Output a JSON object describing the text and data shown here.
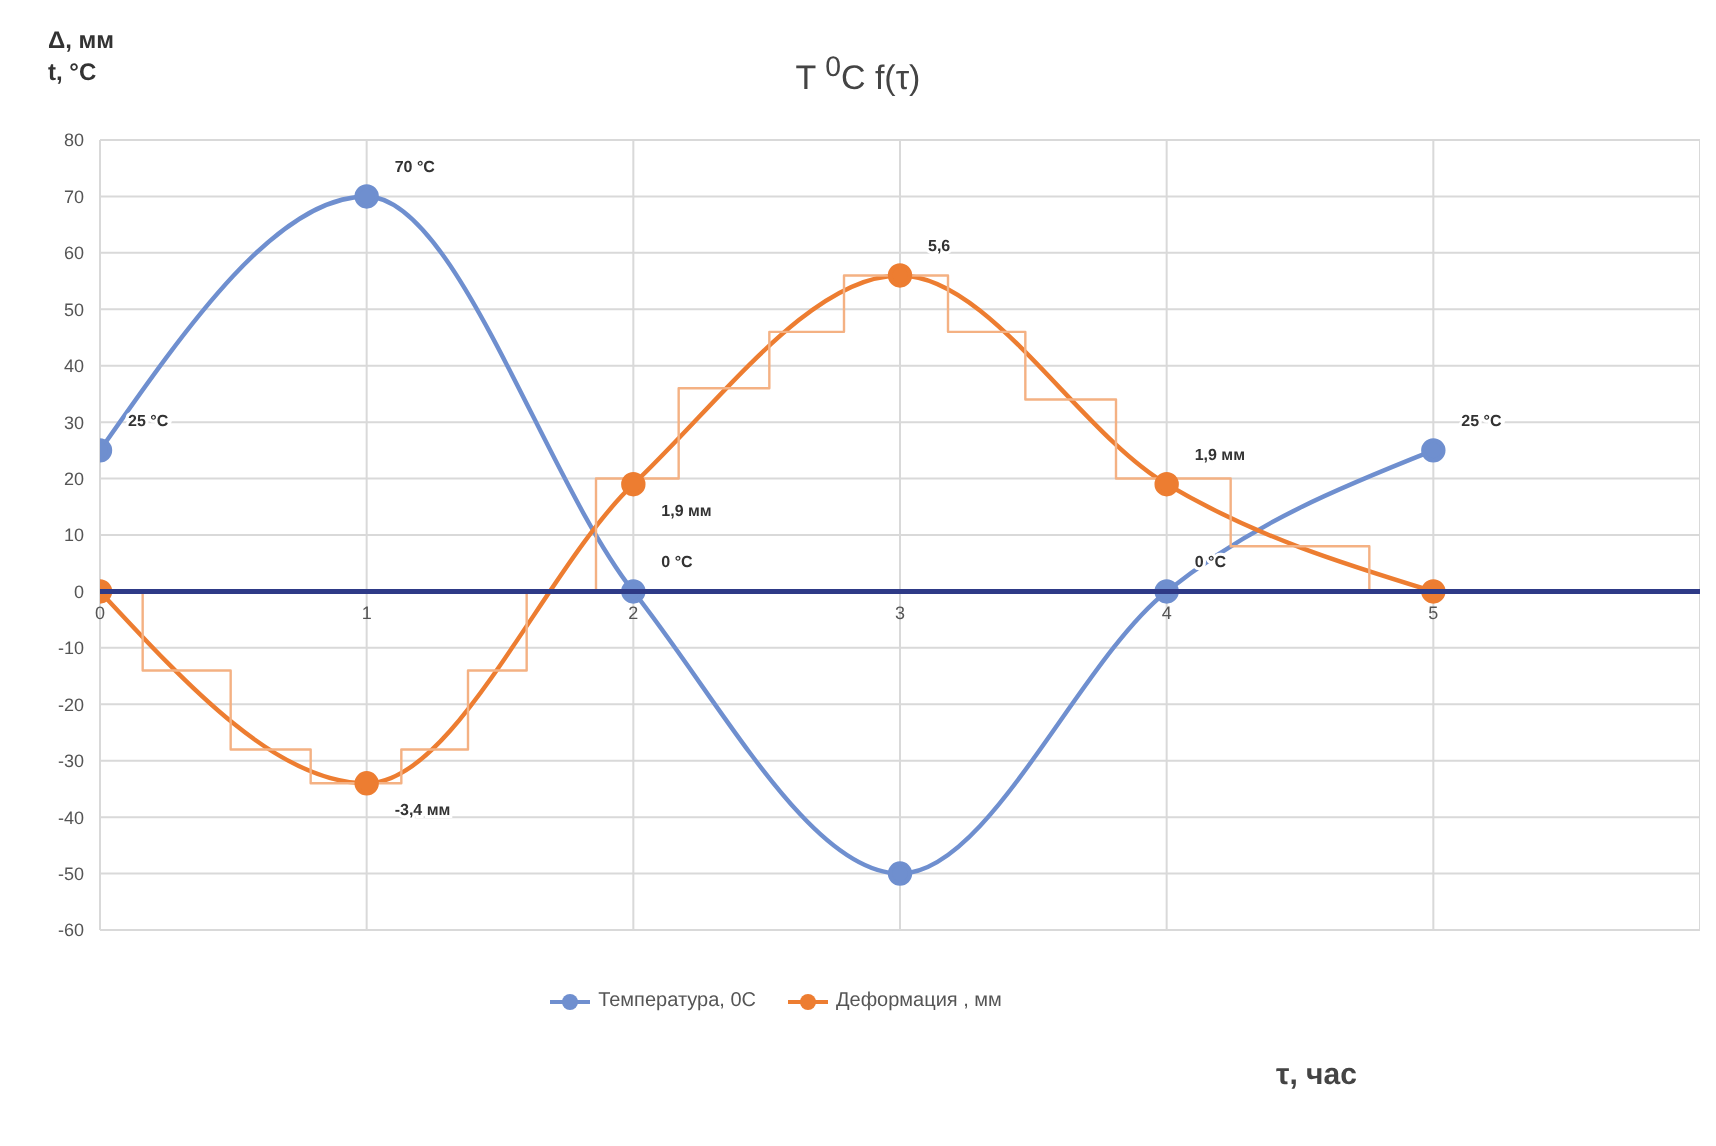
{
  "chart_data": {
    "type": "line",
    "title": "T $^{0}$C f(τ)",
    "ylabel": "Δ, мм\nt, °C",
    "xlabel": "τ, час",
    "x": [
      0,
      1,
      2,
      3,
      4,
      5
    ],
    "xlim": [
      0,
      6
    ],
    "xticks": [
      0,
      1,
      2,
      3,
      4,
      5
    ],
    "ylim": [
      -60,
      80
    ],
    "yticks": [
      -60,
      -50,
      -40,
      -30,
      -20,
      -10,
      0,
      10,
      20,
      30,
      40,
      50,
      60,
      70,
      80
    ],
    "grid": true,
    "legend": "bottom",
    "marker": "circle",
    "series": [
      {
        "name": "Температура, 0С",
        "color": "#6f8fcf",
        "values": [
          25,
          70,
          0,
          -50,
          0,
          25
        ],
        "value_labels": [
          "25 °C",
          "70 °C",
          "0 °C",
          null,
          "0 °C",
          "25 °C"
        ]
      },
      {
        "name": "Деформация , мм",
        "color": "#ed7d31",
        "values": [
          0,
          -34,
          19,
          56,
          19,
          0
        ]
      },
      {
        "type": "step",
        "color": "#f4b183",
        "marker": "none",
        "x": [
          0,
          0.16,
          0.49,
          0.79,
          1.13,
          1.38,
          1.6,
          1.86,
          2.17,
          2.51,
          2.79,
          3.18,
          3.47,
          3.81,
          4.24,
          4.76,
          5
        ],
        "values": [
          0,
          -14,
          -28,
          -34,
          -28,
          -14,
          0,
          20,
          36,
          46,
          56,
          46,
          34,
          20,
          8,
          0,
          0
        ]
      }
    ],
    "annotations": [
      {
        "text": "-3,4 мм",
        "x": 1,
        "y": -34
      },
      {
        "text": "1,9 мм",
        "x": 2,
        "y": 19
      },
      {
        "text": "5,6",
        "x": 3,
        "y": 56
      },
      {
        "text": "1,9 мм",
        "x": 4,
        "y": 19
      }
    ]
  }
}
